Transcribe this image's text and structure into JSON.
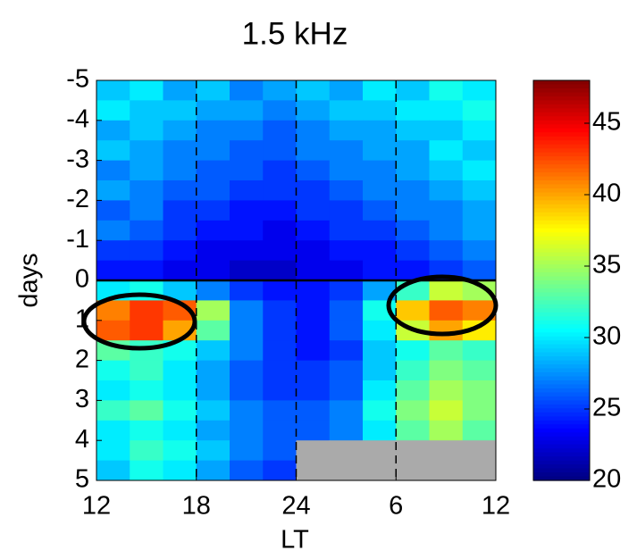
{
  "chart_data": {
    "type": "heatmap",
    "title": "1.5 kHz",
    "xlabel": "LT",
    "ylabel": "days",
    "x": [
      13,
      15,
      17,
      19,
      21,
      23,
      25,
      27,
      29,
      31,
      33,
      35
    ],
    "y": [
      -4.75,
      -4.25,
      -3.75,
      -3.25,
      -2.75,
      -2.25,
      -1.75,
      -1.25,
      -0.75,
      -0.25,
      0.25,
      0.75,
      1.25,
      1.75,
      2.25,
      2.75,
      3.25,
      3.75,
      4.25,
      4.75
    ],
    "values": [
      [
        29,
        30,
        28,
        29,
        27,
        28,
        29,
        28,
        30,
        29,
        31,
        30
      ],
      [
        30,
        29,
        29,
        28,
        28,
        27,
        28,
        29,
        29,
        30,
        30,
        31
      ],
      [
        28,
        29,
        28,
        27,
        27,
        26,
        27,
        28,
        28,
        29,
        29,
        30
      ],
      [
        29,
        28,
        27,
        27,
        26,
        26,
        27,
        27,
        28,
        28,
        30,
        29
      ],
      [
        27,
        28,
        27,
        26,
        26,
        25,
        26,
        27,
        27,
        28,
        29,
        30
      ],
      [
        28,
        27,
        26,
        26,
        25,
        25,
        25,
        26,
        27,
        27,
        28,
        29
      ],
      [
        26,
        27,
        25,
        25,
        24,
        24,
        25,
        25,
        26,
        27,
        27,
        28
      ],
      [
        27,
        26,
        25,
        24,
        24,
        23,
        24,
        25,
        25,
        26,
        27,
        28
      ],
      [
        25,
        25,
        24,
        23,
        23,
        23,
        23,
        24,
        24,
        25,
        26,
        27
      ],
      [
        24,
        24,
        23,
        23,
        22,
        22,
        23,
        23,
        24,
        24,
        25,
        26
      ],
      [
        30,
        31,
        29,
        27,
        25,
        24,
        24,
        25,
        28,
        32,
        36,
        35
      ],
      [
        41,
        43,
        42,
        35,
        27,
        25,
        24,
        26,
        31,
        39,
        42,
        41
      ],
      [
        42,
        43,
        40,
        33,
        27,
        25,
        24,
        26,
        30,
        36,
        40,
        38
      ],
      [
        33,
        32,
        31,
        29,
        27,
        25,
        24,
        25,
        29,
        31,
        33,
        32
      ],
      [
        31,
        32,
        30,
        28,
        26,
        25,
        25,
        26,
        29,
        32,
        34,
        33
      ],
      [
        30,
        31,
        30,
        28,
        26,
        25,
        25,
        26,
        30,
        33,
        35,
        34
      ],
      [
        32,
        33,
        31,
        29,
        27,
        26,
        26,
        27,
        31,
        34,
        36,
        34
      ],
      [
        30,
        31,
        30,
        28,
        27,
        26,
        26,
        27,
        30,
        33,
        35,
        33
      ],
      [
        30,
        32,
        31,
        29,
        27,
        26,
        null,
        null,
        null,
        null,
        null,
        null
      ],
      [
        29,
        31,
        30,
        28,
        26,
        25,
        null,
        null,
        null,
        null,
        null,
        null
      ]
    ],
    "xlim": [
      12,
      36
    ],
    "xticks": [
      12,
      18,
      24,
      {
        "value": 30,
        "label": "6"
      },
      {
        "value": 36,
        "label": "12"
      }
    ],
    "ylim": [
      -5,
      5
    ],
    "y_inverted": true,
    "yticks": [
      -5,
      -4,
      -3,
      -2,
      -1,
      0,
      1,
      2,
      3,
      4,
      5
    ],
    "clim": [
      20,
      48
    ],
    "cticks": [
      20,
      25,
      30,
      35,
      40,
      45
    ],
    "colormap": "jet",
    "missing_color": "#aaaaaa",
    "vlines": [
      18,
      24,
      30
    ],
    "hlines": [
      0
    ]
  }
}
